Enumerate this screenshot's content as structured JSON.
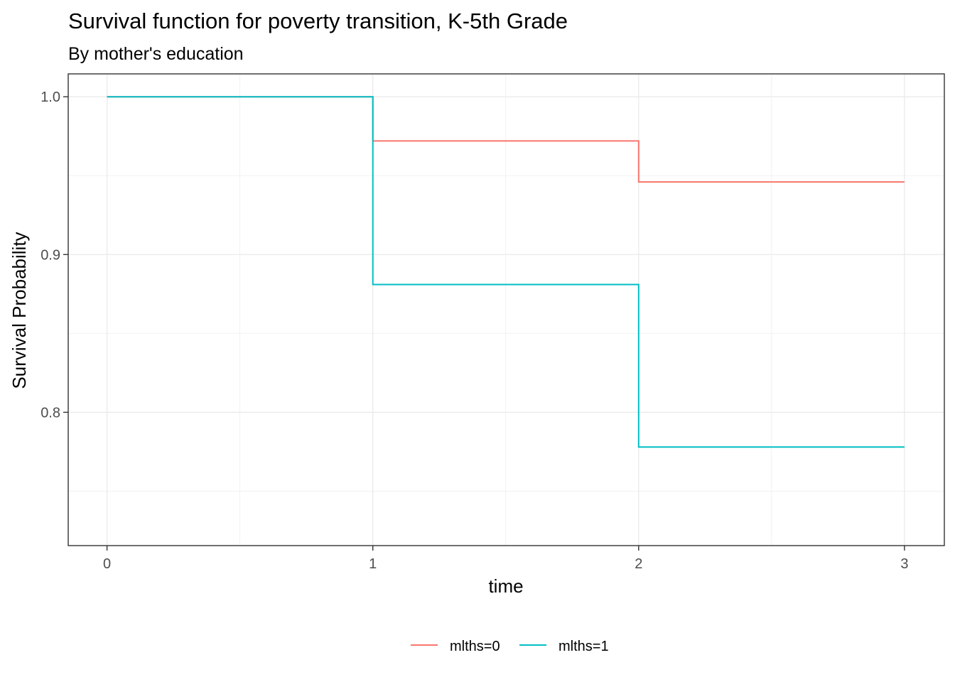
{
  "chart_data": {
    "type": "line",
    "step": true,
    "title": "Survival function for poverty transition, K-5th Grade",
    "subtitle": "By mother's education",
    "xlabel": "time",
    "ylabel": "Survival Probability",
    "xlim": [
      -0.146,
      3.15
    ],
    "ylim": [
      0.7155,
      1.0145
    ],
    "x_ticks": [
      0,
      1,
      2,
      3
    ],
    "x_tick_labels": [
      "0",
      "1",
      "2",
      "3"
    ],
    "y_ticks": [
      0.8,
      0.9,
      1.0
    ],
    "y_tick_labels": [
      "0.8",
      "0.9",
      "1.0"
    ],
    "x_minor_grid": [
      0.5,
      1.5,
      2.5
    ],
    "y_minor_grid": [
      0.75,
      0.85,
      0.95
    ],
    "grid": true,
    "legend_position": "bottom",
    "series": [
      {
        "name": "mlths=0",
        "color": "#F8766D",
        "x": [
          0,
          1,
          2,
          3
        ],
        "y": [
          1.0,
          0.972,
          0.946,
          0.946
        ]
      },
      {
        "name": "mlths=1",
        "color": "#00BFC4",
        "x": [
          0,
          1,
          2,
          3
        ],
        "y": [
          1.0,
          0.881,
          0.778,
          0.778
        ]
      }
    ]
  }
}
